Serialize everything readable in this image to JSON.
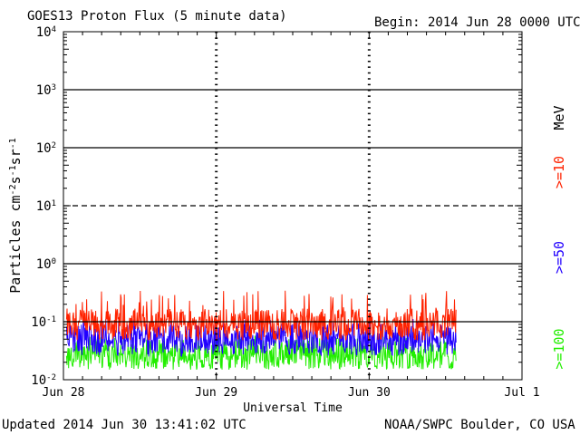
{
  "header": {
    "title": "GOES13 Proton Flux (5 minute data)",
    "begin": "Begin: 2014 Jun 28 0000 UTC"
  },
  "footer": {
    "updated": "Updated 2014 Jun 30 13:41:02 UTC",
    "credit": "NOAA/SWPC Boulder, CO USA"
  },
  "chart_data": {
    "type": "line",
    "title": "GOES13 Proton Flux (5 minute data)",
    "xlabel": "Universal Time",
    "ylabel": "Particles cm-2s-1sr-1",
    "y_scale": "log",
    "ylim": [
      0.01,
      10000
    ],
    "x_ticks": [
      "Jun 28",
      "Jun 29",
      "Jun 30",
      "Jul 1"
    ],
    "y_ticks": [
      {
        "base": "10",
        "exp": "-2",
        "value": 0.01
      },
      {
        "base": "10",
        "exp": "-1",
        "value": 0.1
      },
      {
        "base": "10",
        "exp": "0",
        "value": 1
      },
      {
        "base": "10",
        "exp": "1",
        "value": 10
      },
      {
        "base": "10",
        "exp": "2",
        "value": 100
      },
      {
        "base": "10",
        "exp": "3",
        "value": 1000
      },
      {
        "base": "10",
        "exp": "4",
        "value": 10000
      }
    ],
    "x_range_days": [
      0,
      3
    ],
    "data_end_days": 2.57,
    "unit_label": "MeV",
    "threshold_lines": [
      {
        "value": 10,
        "style": "dashed"
      },
      {
        "value": 1,
        "style": "solid"
      },
      {
        "value": 0.1,
        "style": "solid"
      },
      {
        "value": 100,
        "style": "solid"
      },
      {
        "value": 1000,
        "style": "solid"
      }
    ],
    "series": [
      {
        "name": ">=10",
        "color": "#ff2200",
        "baseline": 0.09,
        "peak": 0.35,
        "low": 0.06
      },
      {
        "name": ">=50",
        "color": "#2200ff",
        "baseline": 0.05,
        "peak": 0.12,
        "low": 0.025
      },
      {
        "name": ">=100",
        "color": "#22ee00",
        "baseline": 0.028,
        "peak": 0.06,
        "low": 0.016
      }
    ]
  }
}
